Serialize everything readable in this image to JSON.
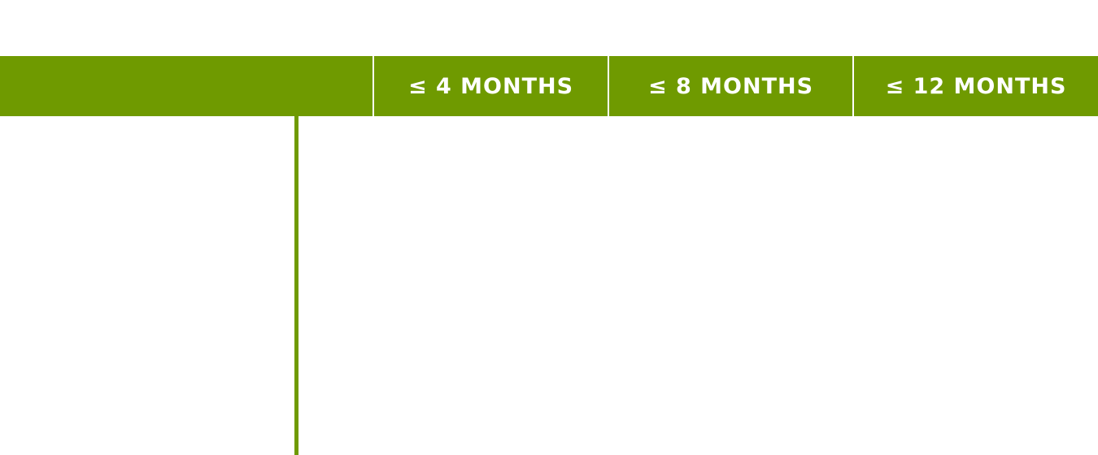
{
  "colors": {
    "accent": "#6f9a00",
    "header_text": "#ffffff",
    "background": "#ffffff"
  },
  "header": {
    "label_column": "",
    "columns": [
      "≤ 4 MONTHS",
      "≤ 8 MONTHS",
      "≤ 12 MONTHS"
    ]
  }
}
